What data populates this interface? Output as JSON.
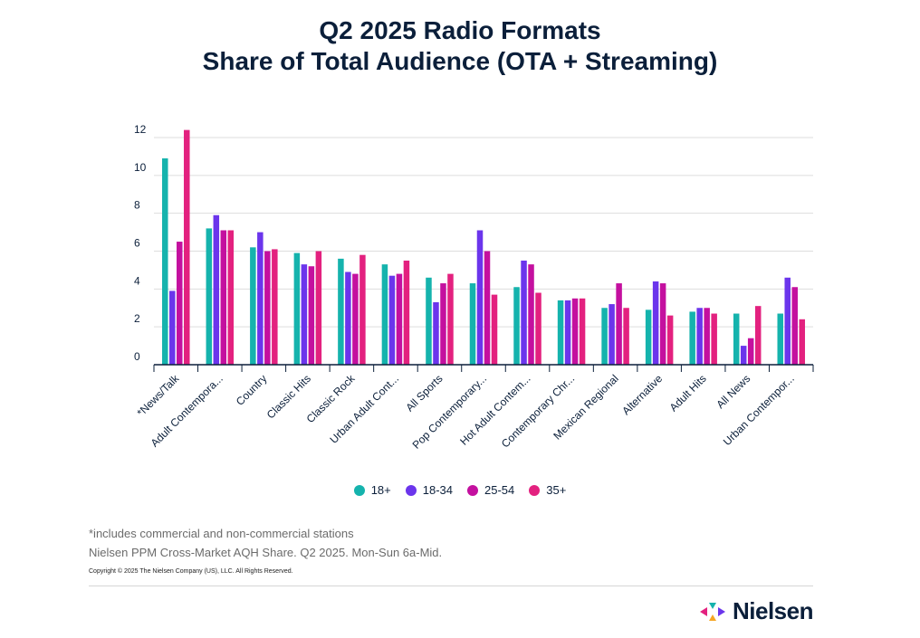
{
  "header": {
    "title_line1": "Q2 2025 Radio Formats",
    "title_line2": "Share of Total Audience (OTA + Streaming)"
  },
  "chart_data": {
    "type": "bar",
    "title": "Q2 2025 Radio Formats Share of Total Audience (OTA + Streaming)",
    "xlabel": "",
    "ylabel": "",
    "ylim": [
      0,
      12
    ],
    "yticks": [
      0,
      2,
      4,
      6,
      8,
      10,
      12
    ],
    "grid": true,
    "legend_position": "bottom",
    "categories": [
      "*News/Talk",
      "Adult Contempora...",
      "Country",
      "Classic Hits",
      "Classic Rock",
      "Urban Adult Cont...",
      "All Sports",
      "Pop Contemporary...",
      "Hot Adult Contem...",
      "Contemporary Chr...",
      "Mexican Regional",
      "Alternative",
      "Adult Hits",
      "All News",
      "Urban Contempor..."
    ],
    "series": [
      {
        "name": "18+",
        "color": "#15b3ad",
        "values": [
          10.9,
          7.2,
          6.2,
          5.9,
          5.6,
          5.3,
          4.6,
          4.3,
          4.1,
          3.4,
          3.0,
          2.9,
          2.8,
          2.7,
          2.7
        ]
      },
      {
        "name": "18-34",
        "color": "#6b35ec",
        "values": [
          3.9,
          7.9,
          7.0,
          5.3,
          4.9,
          4.7,
          3.3,
          7.1,
          5.5,
          3.4,
          3.2,
          4.4,
          3.0,
          1.0,
          4.6
        ]
      },
      {
        "name": "25-54",
        "color": "#c4109f",
        "values": [
          6.5,
          7.1,
          6.0,
          5.2,
          4.8,
          4.8,
          4.3,
          6.0,
          5.3,
          3.5,
          4.3,
          4.3,
          3.0,
          1.4,
          4.1
        ]
      },
      {
        "name": "35+",
        "color": "#e3217f",
        "values": [
          12.4,
          7.1,
          6.1,
          6.0,
          5.8,
          5.5,
          4.8,
          3.7,
          3.8,
          3.5,
          3.0,
          2.6,
          2.7,
          3.1,
          2.4
        ]
      }
    ]
  },
  "notes": {
    "line1": "*includes commercial and non-commercial stations",
    "line2": "Nielsen PPM Cross-Market AQH Share. Q2 2025. Mon-Sun 6a-Mid.",
    "copyright": "Copyright © 2025 The Nielsen Company (US), LLC. All Rights Reserved."
  },
  "logo": {
    "text": "Nielsen",
    "colors": [
      "#e3217f",
      "#15b3ad",
      "#6b35ec",
      "#f5a623"
    ]
  }
}
